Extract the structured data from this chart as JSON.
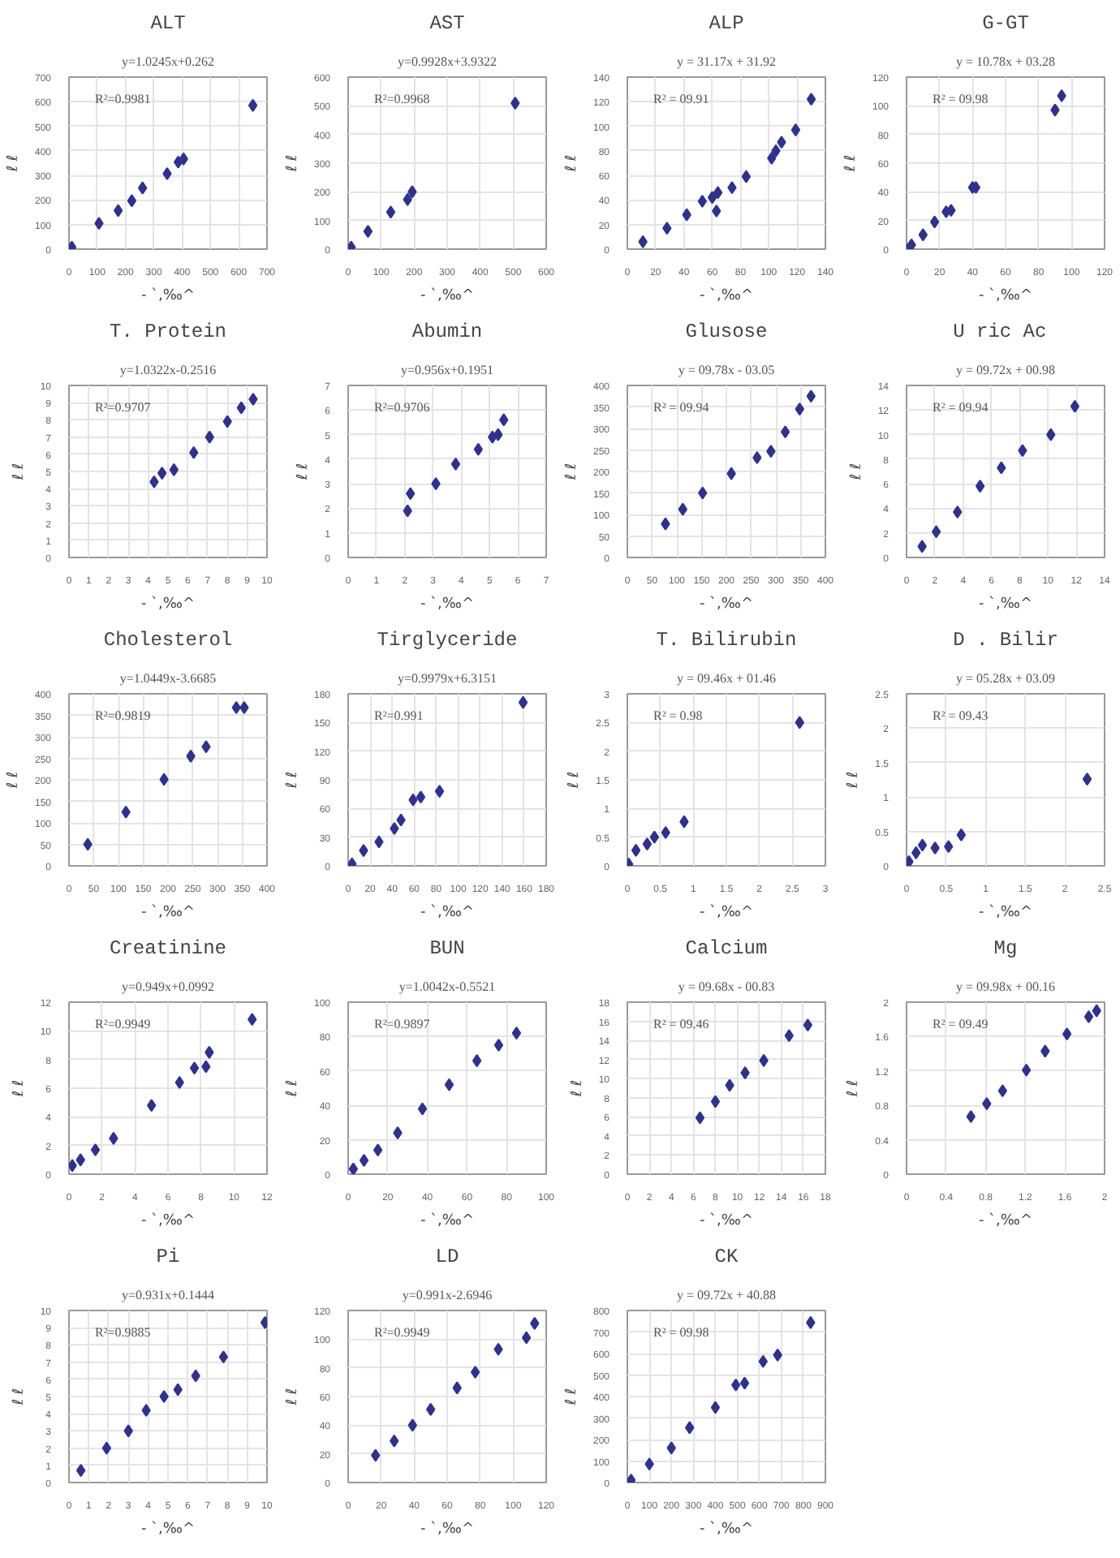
{
  "chart_data": [
    {
      "type": "scatter",
      "title": "ALT",
      "xlabel": "- `,‰^",
      "ylabel": "ℓ ℓ",
      "annotations": [
        "y=1.0245x+0.262",
        "R²=0.9981"
      ],
      "color": "#2e3192",
      "marker": "diamond",
      "grid": true,
      "xlim": [
        0,
        700
      ],
      "ylim": [
        0,
        700
      ],
      "xticks": [
        0,
        100,
        200,
        300,
        400,
        500,
        600,
        700
      ],
      "yticks": [
        0,
        100,
        200,
        300,
        400,
        500,
        600,
        700
      ],
      "x": [
        10,
        106,
        174,
        222,
        260,
        347,
        386,
        405,
        650
      ],
      "values": [
        8,
        105,
        157,
        197,
        249,
        307,
        354,
        367,
        585
      ]
    },
    {
      "type": "scatter",
      "title": "AST",
      "xlabel": "- `,‰^",
      "ylabel": "ℓ ℓ",
      "annotations": [
        "y=0.9928x+3.9322",
        "R²=0.9968"
      ],
      "color": "#2e3192",
      "marker": "diamond",
      "grid": true,
      "xlim": [
        0,
        600
      ],
      "ylim": [
        0,
        600
      ],
      "xticks": [
        0,
        100,
        200,
        300,
        400,
        500,
        600
      ],
      "yticks": [
        0,
        100,
        200,
        300,
        400,
        500,
        600
      ],
      "x": [
        9,
        60,
        129,
        180,
        194,
        506
      ],
      "values": [
        7,
        62,
        129,
        173,
        200,
        509
      ]
    },
    {
      "type": "scatter",
      "title": "ALP",
      "xlabel": "- `,‰^",
      "ylabel": "ℓ ℓ",
      "annotations": [
        "y = 31.17x + 31.92",
        "R² = 09.91"
      ],
      "color": "#2e3192",
      "marker": "diamond",
      "grid": true,
      "xlim": [
        0,
        140
      ],
      "ylim": [
        0,
        140
      ],
      "xticks": [
        0,
        20,
        40,
        60,
        80,
        100,
        120,
        140
      ],
      "yticks": [
        0,
        20,
        40,
        60,
        80,
        100,
        120,
        140
      ],
      "x": [
        11,
        28,
        42,
        53,
        60,
        63,
        64,
        74,
        84,
        102,
        105,
        109,
        119,
        130
      ],
      "values": [
        6,
        17,
        28,
        39,
        42,
        31,
        46,
        50,
        59,
        74,
        80,
        87,
        97,
        122
      ]
    },
    {
      "type": "scatter",
      "title": "G-GT",
      "xlabel": "- `,‰^",
      "ylabel": "ℓ ℓ",
      "annotations": [
        "y = 10.78x + 03.28",
        "R² = 09.98"
      ],
      "color": "#2e3192",
      "marker": "diamond",
      "grid": true,
      "xlim": [
        0,
        120
      ],
      "ylim": [
        0,
        120
      ],
      "xticks": [
        0,
        20,
        40,
        60,
        80,
        100,
        120
      ],
      "yticks": [
        0,
        20,
        40,
        60,
        80,
        100,
        120
      ],
      "x": [
        0,
        3,
        10,
        17,
        24,
        27,
        40,
        42,
        90,
        94
      ],
      "values": [
        0,
        3,
        10,
        19,
        26,
        27,
        43,
        43,
        97,
        107
      ]
    },
    {
      "type": "scatter",
      "title": "T. Protein",
      "xlabel": "- `,‰^",
      "ylabel": "ℓ ℓ",
      "annotations": [
        "y=1.0322x-0.2516",
        "R²=0.9707"
      ],
      "color": "#2e3192",
      "marker": "diamond",
      "grid": true,
      "xlim": [
        0,
        10
      ],
      "ylim": [
        0,
        10
      ],
      "xticks": [
        0,
        1,
        2,
        3,
        4,
        5,
        6,
        7,
        8,
        9,
        10
      ],
      "yticks": [
        0,
        1,
        2,
        3,
        4,
        5,
        6,
        7,
        8,
        9,
        10
      ],
      "x": [
        4.3,
        4.7,
        5.3,
        6.3,
        7.1,
        8.0,
        8.7,
        9.3
      ],
      "values": [
        4.4,
        4.9,
        5.1,
        6.1,
        7.0,
        7.9,
        8.7,
        9.2
      ]
    },
    {
      "type": "scatter",
      "title": "Abumin",
      "xlabel": "- `,‰^",
      "ylabel": "ℓ ℓ",
      "annotations": [
        "y=0.956x+0.1951",
        "R²=0.9706"
      ],
      "color": "#2e3192",
      "marker": "diamond",
      "grid": true,
      "xlim": [
        0,
        7
      ],
      "ylim": [
        0,
        7
      ],
      "xticks": [
        0,
        1,
        2,
        3,
        4,
        5,
        6,
        7
      ],
      "yticks": [
        0,
        1,
        2,
        3,
        4,
        5,
        6,
        7
      ],
      "x": [
        2.1,
        2.2,
        3.1,
        3.8,
        4.6,
        5.1,
        5.3,
        5.5
      ],
      "values": [
        1.9,
        2.6,
        3.0,
        3.8,
        4.4,
        4.9,
        5.0,
        5.6
      ]
    },
    {
      "type": "scatter",
      "title": "Glusose",
      "xlabel": "- `,‰^",
      "ylabel": "ℓ ℓ",
      "annotations": [
        "y = 09.78x - 03.05",
        "R² = 09.94"
      ],
      "color": "#2e3192",
      "marker": "diamond",
      "grid": true,
      "xlim": [
        0,
        400
      ],
      "ylim": [
        0,
        400
      ],
      "xticks": [
        0,
        50,
        100,
        150,
        200,
        250,
        300,
        350,
        400
      ],
      "yticks": [
        0,
        50,
        100,
        150,
        200,
        250,
        300,
        350,
        400
      ],
      "x": [
        77,
        112,
        152,
        210,
        262,
        290,
        319,
        348,
        371
      ],
      "values": [
        78,
        112,
        150,
        195,
        232,
        247,
        292,
        345,
        375
      ]
    },
    {
      "type": "scatter",
      "title": "U ric  Ac",
      "xlabel": "- `,‰^",
      "ylabel": "ℓ ℓ",
      "annotations": [
        "y = 09.72x + 00.98",
        "R² = 09.94"
      ],
      "color": "#2e3192",
      "marker": "diamond",
      "grid": true,
      "xlim": [
        0,
        14
      ],
      "ylim": [
        0,
        14
      ],
      "xticks": [
        0,
        2,
        4,
        6,
        8,
        10,
        12,
        14
      ],
      "yticks": [
        0,
        2,
        4,
        6,
        8,
        10,
        12,
        14
      ],
      "x": [
        1.1,
        2.1,
        3.6,
        5.2,
        6.7,
        8.2,
        10.2,
        11.9
      ],
      "values": [
        0.9,
        2.1,
        3.7,
        5.8,
        7.3,
        8.7,
        10.0,
        12.3
      ]
    },
    {
      "type": "scatter",
      "title": "Cholesterol",
      "xlabel": "- `,‰^",
      "ylabel": "ℓ ℓ",
      "annotations": [
        "y=1.0449x-3.6685",
        "R²=0.9819"
      ],
      "color": "#2e3192",
      "marker": "diamond",
      "grid": true,
      "xlim": [
        0,
        400
      ],
      "ylim": [
        0,
        400
      ],
      "xticks": [
        0,
        50,
        100,
        150,
        200,
        250,
        300,
        350,
        400
      ],
      "yticks": [
        0,
        50,
        100,
        150,
        200,
        250,
        300,
        350,
        400
      ],
      "x": [
        38,
        115,
        192,
        246,
        277,
        338,
        354
      ],
      "values": [
        50,
        125,
        201,
        255,
        277,
        368,
        368
      ]
    },
    {
      "type": "scatter",
      "title": "Tirglyceride",
      "xlabel": "- `,‰^",
      "ylabel": "ℓ ℓ",
      "annotations": [
        "y=0.9979x+6.3151",
        "R²=0.991"
      ],
      "color": "#2e3192",
      "marker": "diamond",
      "grid": true,
      "xlim": [
        0,
        180
      ],
      "ylim": [
        0,
        180
      ],
      "xticks": [
        0,
        20,
        40,
        60,
        80,
        100,
        120,
        140,
        160,
        180
      ],
      "yticks": [
        0,
        30,
        60,
        90,
        120,
        150,
        180
      ],
      "x": [
        3.5,
        14,
        28,
        42,
        48,
        59,
        66,
        83,
        159
      ],
      "values": [
        2,
        16,
        25,
        39,
        48,
        69,
        72,
        78,
        171
      ]
    },
    {
      "type": "scatter",
      "title": "T. Bilirubin",
      "xlabel": "- `,‰^",
      "ylabel": "ℓ ℓ",
      "annotations": [
        "y = 09.46x + 01.46",
        "R² = 0.98"
      ],
      "color": "#2e3192",
      "marker": "diamond",
      "grid": true,
      "xlim": [
        0,
        3
      ],
      "ylim": [
        0,
        3
      ],
      "xticks": [
        0,
        0.5,
        1,
        1.5,
        2,
        2.5,
        3
      ],
      "yticks": [
        0,
        0.5,
        1,
        1.5,
        2,
        2.5,
        3
      ],
      "x": [
        0.02,
        0.13,
        0.3,
        0.41,
        0.58,
        0.86,
        2.61
      ],
      "values": [
        0.03,
        0.27,
        0.38,
        0.5,
        0.58,
        0.77,
        2.5
      ]
    },
    {
      "type": "scatter",
      "title": "D . Bilir",
      "xlabel": "- `,‰^",
      "ylabel": "ℓ ℓ",
      "annotations": [
        "y = 05.28x + 03.09",
        "R² = 09.43"
      ],
      "color": "#2e3192",
      "marker": "diamond",
      "grid": true,
      "xlim": [
        0,
        2.5
      ],
      "ylim": [
        0,
        2.5
      ],
      "xticks": [
        0,
        0.5,
        1,
        1.5,
        2,
        2.5
      ],
      "yticks": [
        0,
        0.5,
        1,
        1.5,
        2,
        2.5
      ],
      "x": [
        0.03,
        0.12,
        0.2,
        0.36,
        0.53,
        0.69,
        2.28
      ],
      "values": [
        0.06,
        0.19,
        0.3,
        0.26,
        0.28,
        0.45,
        1.26
      ]
    },
    {
      "type": "scatter",
      "title": "Creatinine",
      "xlabel": "- `,‰^",
      "ylabel": "ℓ ℓ",
      "annotations": [
        "y=0.949x+0.0992",
        "R²=0.9949"
      ],
      "color": "#2e3192",
      "marker": "diamond",
      "grid": true,
      "xlim": [
        0,
        12
      ],
      "ylim": [
        0,
        12
      ],
      "xticks": [
        0,
        2,
        4,
        6,
        8,
        10,
        12
      ],
      "yticks": [
        0,
        2,
        4,
        6,
        8,
        10,
        12
      ],
      "x": [
        0.2,
        0.7,
        1.6,
        2.7,
        5.0,
        6.7,
        7.6,
        8.3,
        8.5,
        11.1
      ],
      "values": [
        0.6,
        1.0,
        1.7,
        2.5,
        4.8,
        6.4,
        7.4,
        7.5,
        8.5,
        10.8
      ]
    },
    {
      "type": "scatter",
      "title": "BUN",
      "xlabel": "- `,‰^",
      "ylabel": "ℓ ℓ",
      "annotations": [
        "y=1.0042x-0.5521",
        "R²=0.9897"
      ],
      "color": "#2e3192",
      "marker": "diamond",
      "grid": true,
      "xlim": [
        0,
        100
      ],
      "ylim": [
        0,
        100
      ],
      "xticks": [
        0,
        20,
        40,
        60,
        80,
        100
      ],
      "yticks": [
        0,
        20,
        40,
        60,
        80,
        100
      ],
      "x": [
        2.6,
        8,
        15,
        25,
        37.5,
        51,
        65,
        76,
        85
      ],
      "values": [
        3,
        8,
        14,
        24,
        38,
        52,
        66,
        75,
        82
      ]
    },
    {
      "type": "scatter",
      "title": "Calcium",
      "xlabel": "- `,‰^",
      "ylabel": "ℓ ℓ",
      "annotations": [
        "y = 09.68x - 00.83",
        "R² = 09.46"
      ],
      "color": "#2e3192",
      "marker": "diamond",
      "grid": true,
      "xlim": [
        0,
        18
      ],
      "ylim": [
        0,
        18
      ],
      "xticks": [
        0,
        2,
        4,
        6,
        8,
        10,
        12,
        14,
        16,
        18
      ],
      "yticks": [
        0,
        2,
        4,
        6,
        8,
        10,
        12,
        14,
        16,
        18
      ],
      "x": [
        6.6,
        8.0,
        9.3,
        10.7,
        12.4,
        14.7,
        16.4
      ],
      "values": [
        5.9,
        7.6,
        9.3,
        10.6,
        11.9,
        14.5,
        15.6
      ]
    },
    {
      "type": "scatter",
      "title": "Mg",
      "xlabel": "- `,‰^",
      "ylabel": "ℓ ℓ",
      "annotations": [
        "y = 09.98x + 00.16",
        "R² = 09.49"
      ],
      "color": "#2e3192",
      "marker": "diamond",
      "grid": true,
      "xlim": [
        0,
        2
      ],
      "ylim": [
        0,
        2
      ],
      "xticks": [
        0,
        0.4,
        0.8,
        1.2,
        1.6,
        2
      ],
      "yticks": [
        0,
        0.4,
        0.8,
        1.2,
        1.6,
        2
      ],
      "x": [
        0.65,
        0.81,
        0.97,
        1.21,
        1.4,
        1.62,
        1.84,
        1.92
      ],
      "values": [
        0.67,
        0.82,
        0.97,
        1.21,
        1.43,
        1.63,
        1.83,
        1.9
      ]
    },
    {
      "type": "scatter",
      "title": "Pi",
      "xlabel": "- `,‰^",
      "ylabel": "ℓ ℓ",
      "annotations": [
        "y=0.931x+0.1444",
        "R²=0.9885"
      ],
      "color": "#2e3192",
      "marker": "diamond",
      "grid": true,
      "xlim": [
        0,
        10
      ],
      "ylim": [
        0,
        10
      ],
      "xticks": [
        0,
        1,
        2,
        3,
        4,
        5,
        6,
        7,
        8,
        9,
        10
      ],
      "yticks": [
        0,
        1,
        2,
        3,
        4,
        5,
        6,
        7,
        8,
        9,
        10
      ],
      "x": [
        0.6,
        1.9,
        3.0,
        3.9,
        4.8,
        5.5,
        6.4,
        7.8,
        9.9
      ],
      "values": [
        0.7,
        2.0,
        3.0,
        4.2,
        5.0,
        5.4,
        6.2,
        7.3,
        9.3
      ]
    },
    {
      "type": "scatter",
      "title": "LD",
      "xlabel": "- `,‰^",
      "ylabel": "ℓ ℓ",
      "annotations": [
        "y=0.991x-2.6946",
        "R²=0.9949"
      ],
      "color": "#2e3192",
      "marker": "diamond",
      "grid": true,
      "xlim": [
        0,
        120
      ],
      "ylim": [
        0,
        120
      ],
      "xticks": [
        0,
        20,
        40,
        60,
        80,
        100,
        120
      ],
      "yticks": [
        0,
        20,
        40,
        60,
        80,
        100,
        120
      ],
      "x": [
        16.6,
        27.9,
        39,
        50,
        66,
        77,
        91,
        108,
        113
      ],
      "values": [
        19,
        29,
        40,
        51,
        66,
        77,
        93,
        101,
        111
      ]
    },
    {
      "type": "scatter",
      "title": "CK",
      "xlabel": "- `,‰^",
      "ylabel": "ℓ ℓ",
      "annotations": [
        "y = 09.72x + 40.88",
        "R² = 09.98"
      ],
      "color": "#2e3192",
      "marker": "diamond",
      "grid": true,
      "xlim": [
        0,
        900
      ],
      "ylim": [
        0,
        800
      ],
      "xticks": [
        0,
        100,
        200,
        300,
        400,
        500,
        600,
        700,
        800,
        900
      ],
      "yticks": [
        0,
        100,
        200,
        300,
        400,
        500,
        600,
        700,
        800
      ],
      "x": [
        17,
        100,
        200,
        283,
        400,
        493,
        533,
        617,
        683,
        833
      ],
      "values": [
        11,
        86,
        161,
        255,
        349,
        454,
        462,
        563,
        593,
        744
      ]
    }
  ]
}
